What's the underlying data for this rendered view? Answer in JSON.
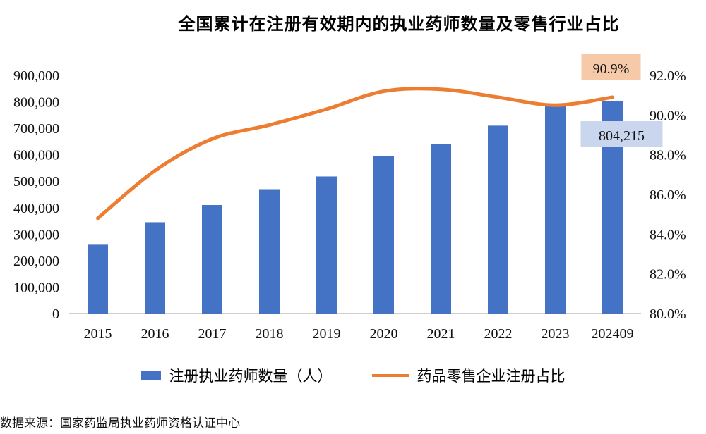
{
  "title": "全国累计在注册有效期内的执业药师数量及零售行业占比",
  "source": "数据来源：国家药监局执业药师资格认证中心",
  "colors": {
    "bar": "#4472c4",
    "line": "#ed7d31",
    "bar_label_bg": "#c9d6ee",
    "line_label_bg": "#f6c9a8"
  },
  "chart_data": {
    "type": "bar+line",
    "categories": [
      "2015",
      "2016",
      "2017",
      "2018",
      "2019",
      "2020",
      "2021",
      "2022",
      "2023",
      "202409"
    ],
    "series": [
      {
        "name": "注册执业药师数量（人）",
        "type": "bar",
        "axis": "left",
        "values": [
          260000,
          345000,
          410000,
          470000,
          518000,
          595000,
          640000,
          710000,
          785000,
          804215
        ]
      },
      {
        "name": "药品零售企业注册占比",
        "type": "line",
        "axis": "right",
        "values": [
          84.8,
          87.2,
          88.8,
          89.5,
          90.3,
          91.2,
          91.3,
          90.9,
          90.5,
          90.9
        ]
      }
    ],
    "y_left": {
      "ylim": [
        0,
        900000
      ],
      "ticks": [
        "0",
        "100,000",
        "200,000",
        "300,000",
        "400,000",
        "500,000",
        "600,000",
        "700,000",
        "800,000",
        "900,000"
      ]
    },
    "y_right": {
      "ylim": [
        80,
        92
      ],
      "ticks": [
        "80.0%",
        "82.0%",
        "84.0%",
        "86.0%",
        "88.0%",
        "90.0%",
        "92.0%"
      ]
    },
    "annotations": [
      {
        "series": "注册执业药师数量（人）",
        "category": "202409",
        "text": "804,215"
      },
      {
        "series": "药品零售企业注册占比",
        "category": "202409",
        "text": "90.9%"
      }
    ],
    "grid": false,
    "legend": "bottom"
  }
}
